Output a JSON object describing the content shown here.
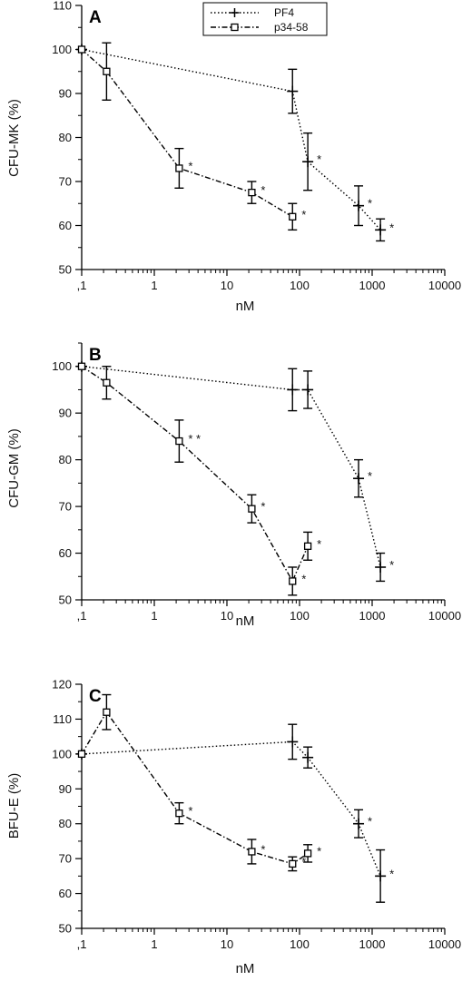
{
  "legend": [
    {
      "label": "PF4",
      "style": "dotted",
      "marker": "plus"
    },
    {
      "label": "p34-58",
      "style": "dashdot",
      "marker": "square"
    }
  ],
  "chart_data": [
    {
      "type": "line",
      "panel": "A",
      "xlabel": "nM",
      "ylabel": "CFU-MK (%)",
      "xscale": "log",
      "xlim": [
        0.1,
        10000
      ],
      "ylim": [
        50,
        110
      ],
      "xticks": [
        0.1,
        1,
        10,
        100,
        1000,
        10000
      ],
      "xticklabels": [
        ",1",
        "1",
        "10",
        "100",
        "1000",
        "10000"
      ],
      "yticks": [
        50,
        60,
        70,
        80,
        90,
        100,
        110
      ],
      "legend_position": "top-center",
      "series": [
        {
          "name": "PF4",
          "x": [
            0.1,
            80,
            130,
            650,
            1300
          ],
          "y": [
            100,
            90.5,
            74.5,
            64.5,
            59
          ],
          "err": [
            0,
            5,
            6.5,
            4.5,
            2.5
          ],
          "stars": [
            false,
            false,
            true,
            true,
            true
          ]
        },
        {
          "name": "p34-58",
          "x": [
            0.1,
            0.22,
            2.2,
            22,
            80
          ],
          "y": [
            100,
            95,
            73,
            67.5,
            62
          ],
          "err": [
            0,
            6.5,
            4.5,
            2.5,
            3
          ],
          "stars": [
            false,
            false,
            true,
            true,
            true
          ]
        }
      ]
    },
    {
      "type": "line",
      "panel": "B",
      "xlabel": "nM",
      "ylabel": "CFU-GM (%)",
      "xscale": "log",
      "xlim": [
        0.1,
        10000
      ],
      "ylim": [
        50,
        105
      ],
      "xticks": [
        0.1,
        1,
        10,
        100,
        1000,
        10000
      ],
      "xticklabels": [
        ",1",
        "1",
        "10",
        "100",
        "1000",
        "10000"
      ],
      "yticks": [
        50,
        60,
        70,
        80,
        90,
        100
      ],
      "series": [
        {
          "name": "PF4",
          "x": [
            0.1,
            80,
            130,
            650,
            1300
          ],
          "y": [
            100,
            95,
            95,
            76,
            57
          ],
          "err": [
            0,
            4.5,
            4,
            4,
            3
          ],
          "stars": [
            false,
            false,
            false,
            true,
            true
          ]
        },
        {
          "name": "p34-58",
          "x": [
            0.1,
            0.22,
            2.2,
            22,
            80,
            130
          ],
          "y": [
            100,
            96.5,
            84,
            69.5,
            54,
            61.5
          ],
          "err": [
            0,
            3.5,
            4.5,
            3,
            3,
            3
          ],
          "stars": [
            false,
            false,
            true,
            true,
            true,
            true
          ],
          "star_marks": [
            "",
            "",
            "* *",
            "*",
            "*",
            "*"
          ]
        }
      ]
    },
    {
      "type": "line",
      "panel": "C",
      "xlabel": "nM",
      "ylabel": "BFU-E (%)",
      "xscale": "log",
      "xlim": [
        0.1,
        10000
      ],
      "ylim": [
        50,
        120
      ],
      "xticks": [
        0.1,
        1,
        10,
        100,
        1000,
        10000
      ],
      "xticklabels": [
        ",1",
        "1",
        "10",
        "100",
        "1000",
        "10000"
      ],
      "yticks": [
        50,
        60,
        70,
        80,
        90,
        100,
        110,
        120
      ],
      "series": [
        {
          "name": "PF4",
          "x": [
            0.1,
            80,
            130,
            650,
            1300
          ],
          "y": [
            100,
            103.5,
            99,
            80,
            65
          ],
          "err": [
            0,
            5,
            3,
            4,
            7.5
          ],
          "stars": [
            false,
            false,
            false,
            true,
            true
          ]
        },
        {
          "name": "p34-58",
          "x": [
            0.1,
            0.22,
            2.2,
            22,
            80,
            130
          ],
          "y": [
            100,
            112,
            83,
            72,
            68.5,
            71.5
          ],
          "err": [
            0,
            5,
            3,
            3.5,
            2,
            2.5
          ],
          "stars": [
            false,
            false,
            true,
            true,
            true,
            true
          ]
        }
      ]
    }
  ]
}
